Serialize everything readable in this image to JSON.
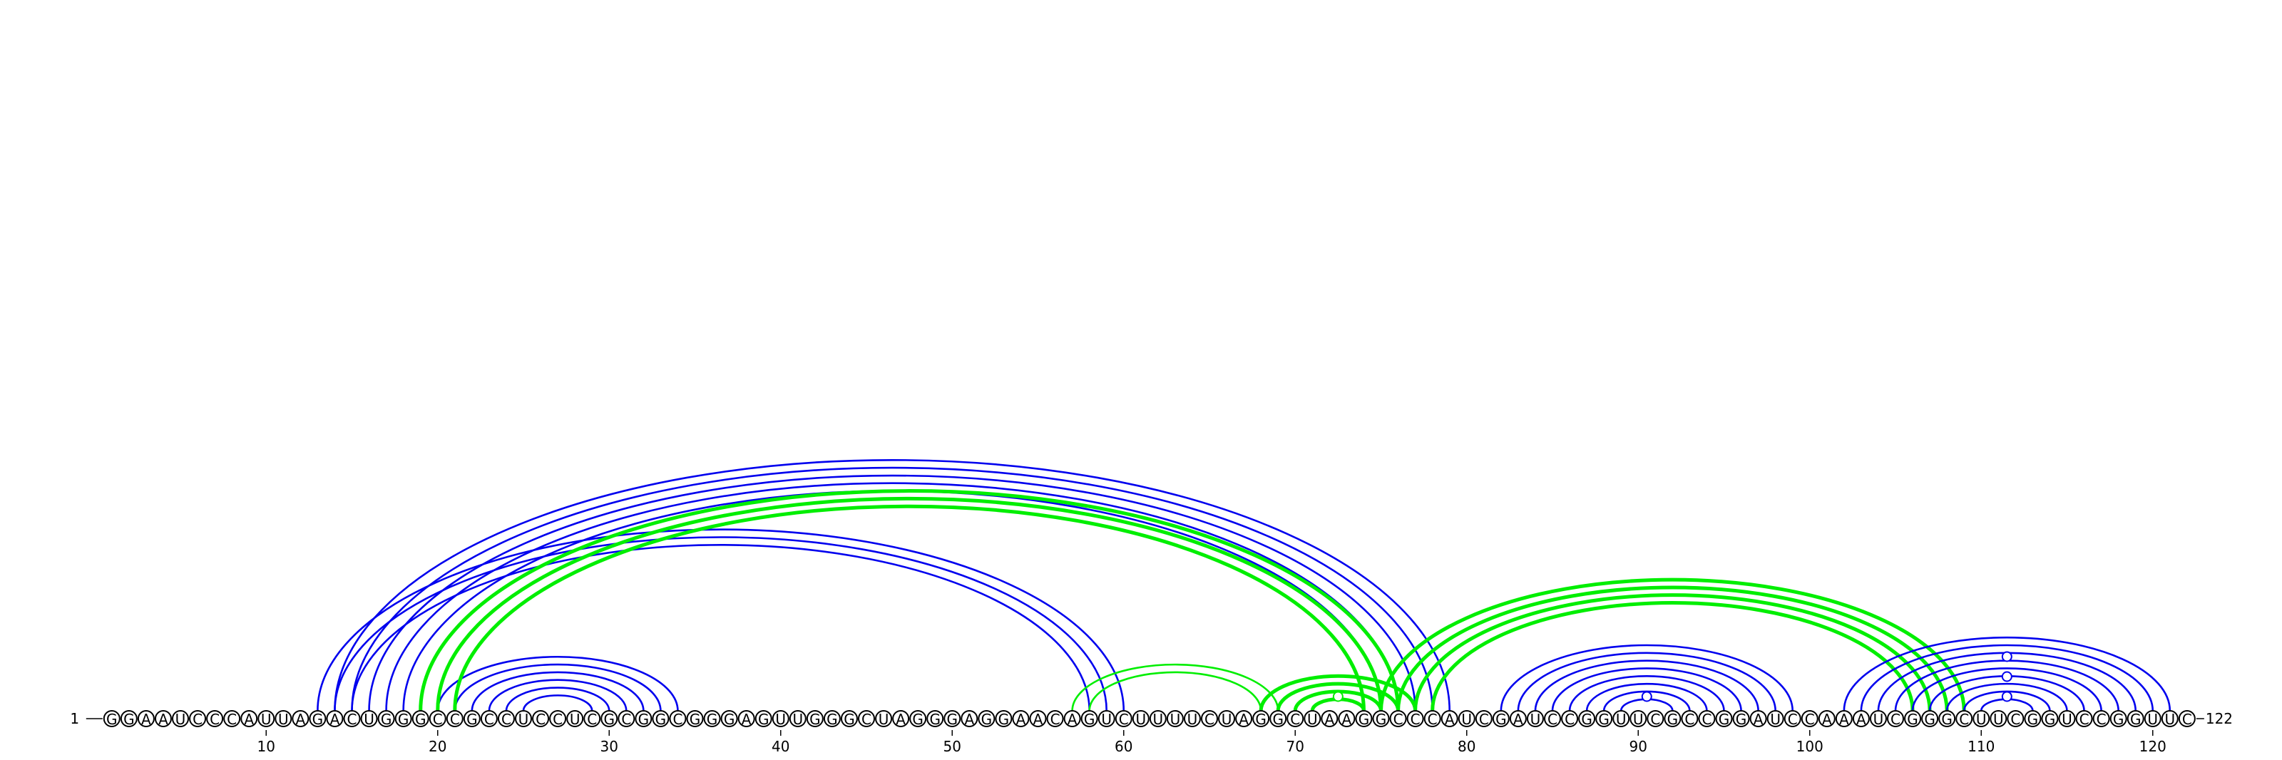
{
  "sequence": "GGAAUCCCAUUAGACUGGGCCGCCUCCUCGCGGCGGGAGUUGGGCUAGGGAGGAACAGUCUUUUCUAGGCUAAGGCCCAUCGAUCCGGUUCGCCGGAUCCAAAUCGGGCUUCGGUCCGGUUC",
  "start_label": "1",
  "end_label": "122",
  "ticks": [
    10,
    20,
    30,
    40,
    50,
    60,
    70,
    80,
    90,
    100,
    110,
    120
  ],
  "colors": {
    "blue": "#0000ee",
    "green": "#00ee00"
  },
  "helices": [
    {
      "color": "blue",
      "start": 20,
      "end": 34,
      "length": 6,
      "weight": 1
    },
    {
      "color": "blue",
      "start": 13,
      "end": 60,
      "length": 3,
      "weight": 1
    },
    {
      "color": "blue",
      "start": 14,
      "end": 79,
      "length": 5,
      "weight": 1
    },
    {
      "color": "green",
      "start": 19,
      "end": 76,
      "length": 3,
      "weight": 2
    },
    {
      "color": "green",
      "start": 57,
      "end": 69,
      "length": 2,
      "weight": 1
    },
    {
      "color": "green",
      "start": 68,
      "end": 77,
      "length": 4,
      "weight": 2
    },
    {
      "color": "green",
      "start": 75,
      "end": 109,
      "length": 4,
      "weight": 2
    },
    {
      "color": "blue",
      "start": 82,
      "end": 99,
      "length": 8,
      "weight": 1
    },
    {
      "color": "blue",
      "start": 102,
      "end": 121,
      "length": 9,
      "weight": 1
    }
  ],
  "loop_markers": [
    {
      "color": "green",
      "position": 72.5,
      "level": 1
    },
    {
      "color": "blue",
      "position": 90.5,
      "level": 1
    },
    {
      "color": "blue",
      "position": 111.5,
      "level": 1
    },
    {
      "color": "blue",
      "position": 111.5,
      "level": 3
    },
    {
      "color": "blue",
      "position": 111.5,
      "level": 5
    }
  ]
}
